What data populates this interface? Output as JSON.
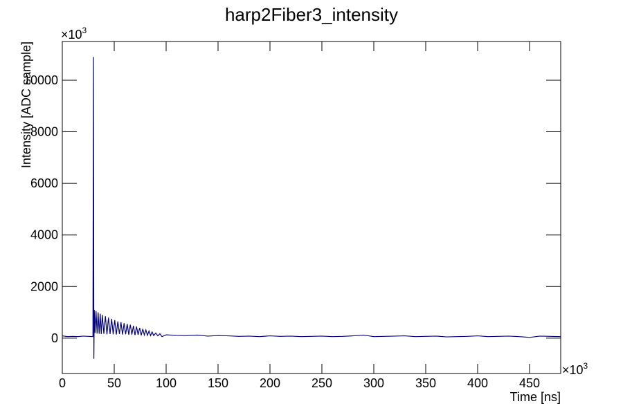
{
  "chart_data": {
    "type": "line",
    "title": "harp2Fiber3_intensity",
    "x_label": "Time [ns]",
    "y_label": "Intensity [ADC sample]",
    "x_multiplier": {
      "base": "×10",
      "exponent": "3"
    },
    "y_multiplier": {
      "base": "×10",
      "exponent": "3"
    },
    "xlim": [
      0,
      480
    ],
    "ylim": [
      -1370,
      11500
    ],
    "xticks": [
      0,
      50,
      100,
      150,
      200,
      250,
      300,
      350,
      400,
      450
    ],
    "yticks": [
      0,
      2000,
      4000,
      6000,
      8000,
      10000
    ],
    "grid": false,
    "series": [
      {
        "color": "#000080",
        "x": [
          0,
          5,
          10,
          15,
          20,
          25,
          29.5,
          30,
          30.4,
          30.8,
          31.5,
          32.5,
          33.5,
          34.5,
          35.5,
          36.5,
          37.5,
          38.5,
          40,
          41.5,
          43,
          44.5,
          46,
          47.5,
          49,
          50.5,
          52,
          53.5,
          55,
          56.5,
          58,
          59.5,
          61,
          62.5,
          64,
          65.5,
          67,
          68.5,
          70,
          71.5,
          73,
          74.5,
          76,
          77.5,
          79,
          80.5,
          82,
          83.5,
          85,
          86.5,
          88,
          90,
          92,
          94,
          96,
          100,
          110,
          120,
          130,
          140,
          150,
          160,
          170,
          180,
          190,
          200,
          210,
          220,
          230,
          240,
          250,
          260,
          270,
          280,
          290,
          300,
          310,
          320,
          330,
          340,
          350,
          360,
          370,
          380,
          390,
          400,
          410,
          420,
          430,
          440,
          450,
          460,
          470,
          480
        ],
        "values": [
          90,
          60,
          70,
          60,
          80,
          70,
          60,
          10900,
          -800,
          1100,
          200,
          1050,
          180,
          1000,
          170,
          950,
          160,
          900,
          170,
          850,
          150,
          800,
          160,
          750,
          150,
          700,
          140,
          650,
          160,
          620,
          140,
          580,
          150,
          550,
          130,
          520,
          140,
          480,
          120,
          450,
          130,
          400,
          110,
          360,
          120,
          320,
          110,
          280,
          100,
          240,
          100,
          200,
          90,
          170,
          60,
          130,
          110,
          100,
          120,
          80,
          100,
          90,
          70,
          80,
          60,
          90,
          70,
          80,
          60,
          70,
          80,
          60,
          70,
          90,
          120,
          60,
          70,
          80,
          90,
          60,
          70,
          80,
          50,
          60,
          70,
          90,
          60,
          70,
          80,
          60,
          30,
          80,
          70,
          60
        ]
      }
    ]
  }
}
